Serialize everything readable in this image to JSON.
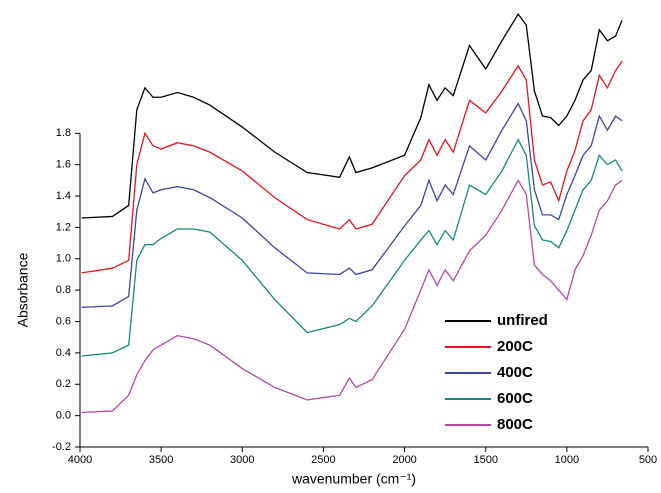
{
  "chart_data": {
    "type": "line",
    "x_label": "wavenumber (cm⁻¹)",
    "y_label": "Absorbance",
    "x": [
      3990,
      3800,
      3700,
      3650,
      3600,
      3550,
      3500,
      3400,
      3300,
      3200,
      3000,
      2800,
      2600,
      2400,
      2340,
      2300,
      2200,
      2000,
      1900,
      1850,
      1800,
      1750,
      1700,
      1600,
      1500,
      1400,
      1300,
      1250,
      1200,
      1150,
      1100,
      1050,
      1000,
      950,
      900,
      850,
      800,
      750,
      700,
      660
    ],
    "series": [
      {
        "name": "unfired",
        "color": "#000000",
        "values": [
          1.26,
          1.27,
          1.34,
          1.95,
          2.09,
          2.03,
          2.03,
          2.06,
          2.03,
          1.98,
          1.84,
          1.68,
          1.55,
          1.52,
          1.65,
          1.55,
          1.58,
          1.66,
          1.9,
          2.11,
          2.01,
          2.09,
          2.04,
          2.36,
          2.21,
          2.39,
          2.56,
          2.49,
          2.07,
          1.91,
          1.9,
          1.85,
          1.91,
          2.01,
          2.14,
          2.2,
          2.46,
          2.39,
          2.42,
          2.52
        ]
      },
      {
        "name": "200C",
        "color": "#e8141c",
        "values": [
          0.91,
          0.94,
          0.99,
          1.6,
          1.8,
          1.72,
          1.7,
          1.74,
          1.72,
          1.68,
          1.56,
          1.39,
          1.25,
          1.19,
          1.25,
          1.19,
          1.22,
          1.53,
          1.63,
          1.76,
          1.66,
          1.76,
          1.68,
          2.01,
          1.93,
          2.07,
          2.23,
          2.14,
          1.63,
          1.47,
          1.49,
          1.37,
          1.56,
          1.69,
          1.88,
          1.95,
          2.17,
          2.09,
          2.2,
          2.26
        ]
      },
      {
        "name": "400C",
        "color": "#3a45a6",
        "values": [
          0.69,
          0.7,
          0.76,
          1.31,
          1.51,
          1.42,
          1.44,
          1.46,
          1.44,
          1.39,
          1.26,
          1.07,
          0.91,
          0.9,
          0.94,
          0.9,
          0.93,
          1.21,
          1.34,
          1.5,
          1.37,
          1.47,
          1.41,
          1.72,
          1.63,
          1.82,
          1.99,
          1.88,
          1.44,
          1.28,
          1.28,
          1.25,
          1.41,
          1.53,
          1.66,
          1.72,
          1.91,
          1.82,
          1.91,
          1.88
        ]
      },
      {
        "name": "600C",
        "color": "#138a80",
        "values": [
          0.38,
          0.4,
          0.45,
          0.99,
          1.09,
          1.09,
          1.13,
          1.19,
          1.19,
          1.17,
          0.99,
          0.74,
          0.53,
          0.58,
          0.62,
          0.6,
          0.7,
          0.99,
          1.12,
          1.18,
          1.09,
          1.18,
          1.12,
          1.47,
          1.41,
          1.56,
          1.76,
          1.66,
          1.21,
          1.12,
          1.11,
          1.07,
          1.18,
          1.31,
          1.44,
          1.5,
          1.66,
          1.6,
          1.63,
          1.56
        ]
      },
      {
        "name": "800C",
        "color": "#b548a8",
        "values": [
          0.02,
          0.03,
          0.13,
          0.26,
          0.35,
          0.42,
          0.45,
          0.51,
          0.49,
          0.45,
          0.3,
          0.18,
          0.1,
          0.13,
          0.24,
          0.18,
          0.23,
          0.55,
          0.8,
          0.93,
          0.83,
          0.93,
          0.86,
          1.05,
          1.15,
          1.31,
          1.5,
          1.41,
          0.96,
          0.9,
          0.86,
          0.8,
          0.74,
          0.93,
          1.02,
          1.15,
          1.31,
          1.37,
          1.47,
          1.5
        ]
      }
    ],
    "xlim": [
      4000,
      500
    ],
    "xticks": [
      4000,
      3500,
      3000,
      2500,
      2000,
      1500,
      1000,
      500
    ],
    "ylim": [
      -0.2,
      2.65
    ],
    "yticks": [
      -0.2,
      {
        "value": 0,
        "label": "0.0"
      },
      0.2,
      0.4,
      0.6,
      0.8,
      {
        "value": 1,
        "label": "1.0"
      },
      1.2,
      1.4,
      1.6,
      1.8
    ],
    "legend": "lower right"
  }
}
